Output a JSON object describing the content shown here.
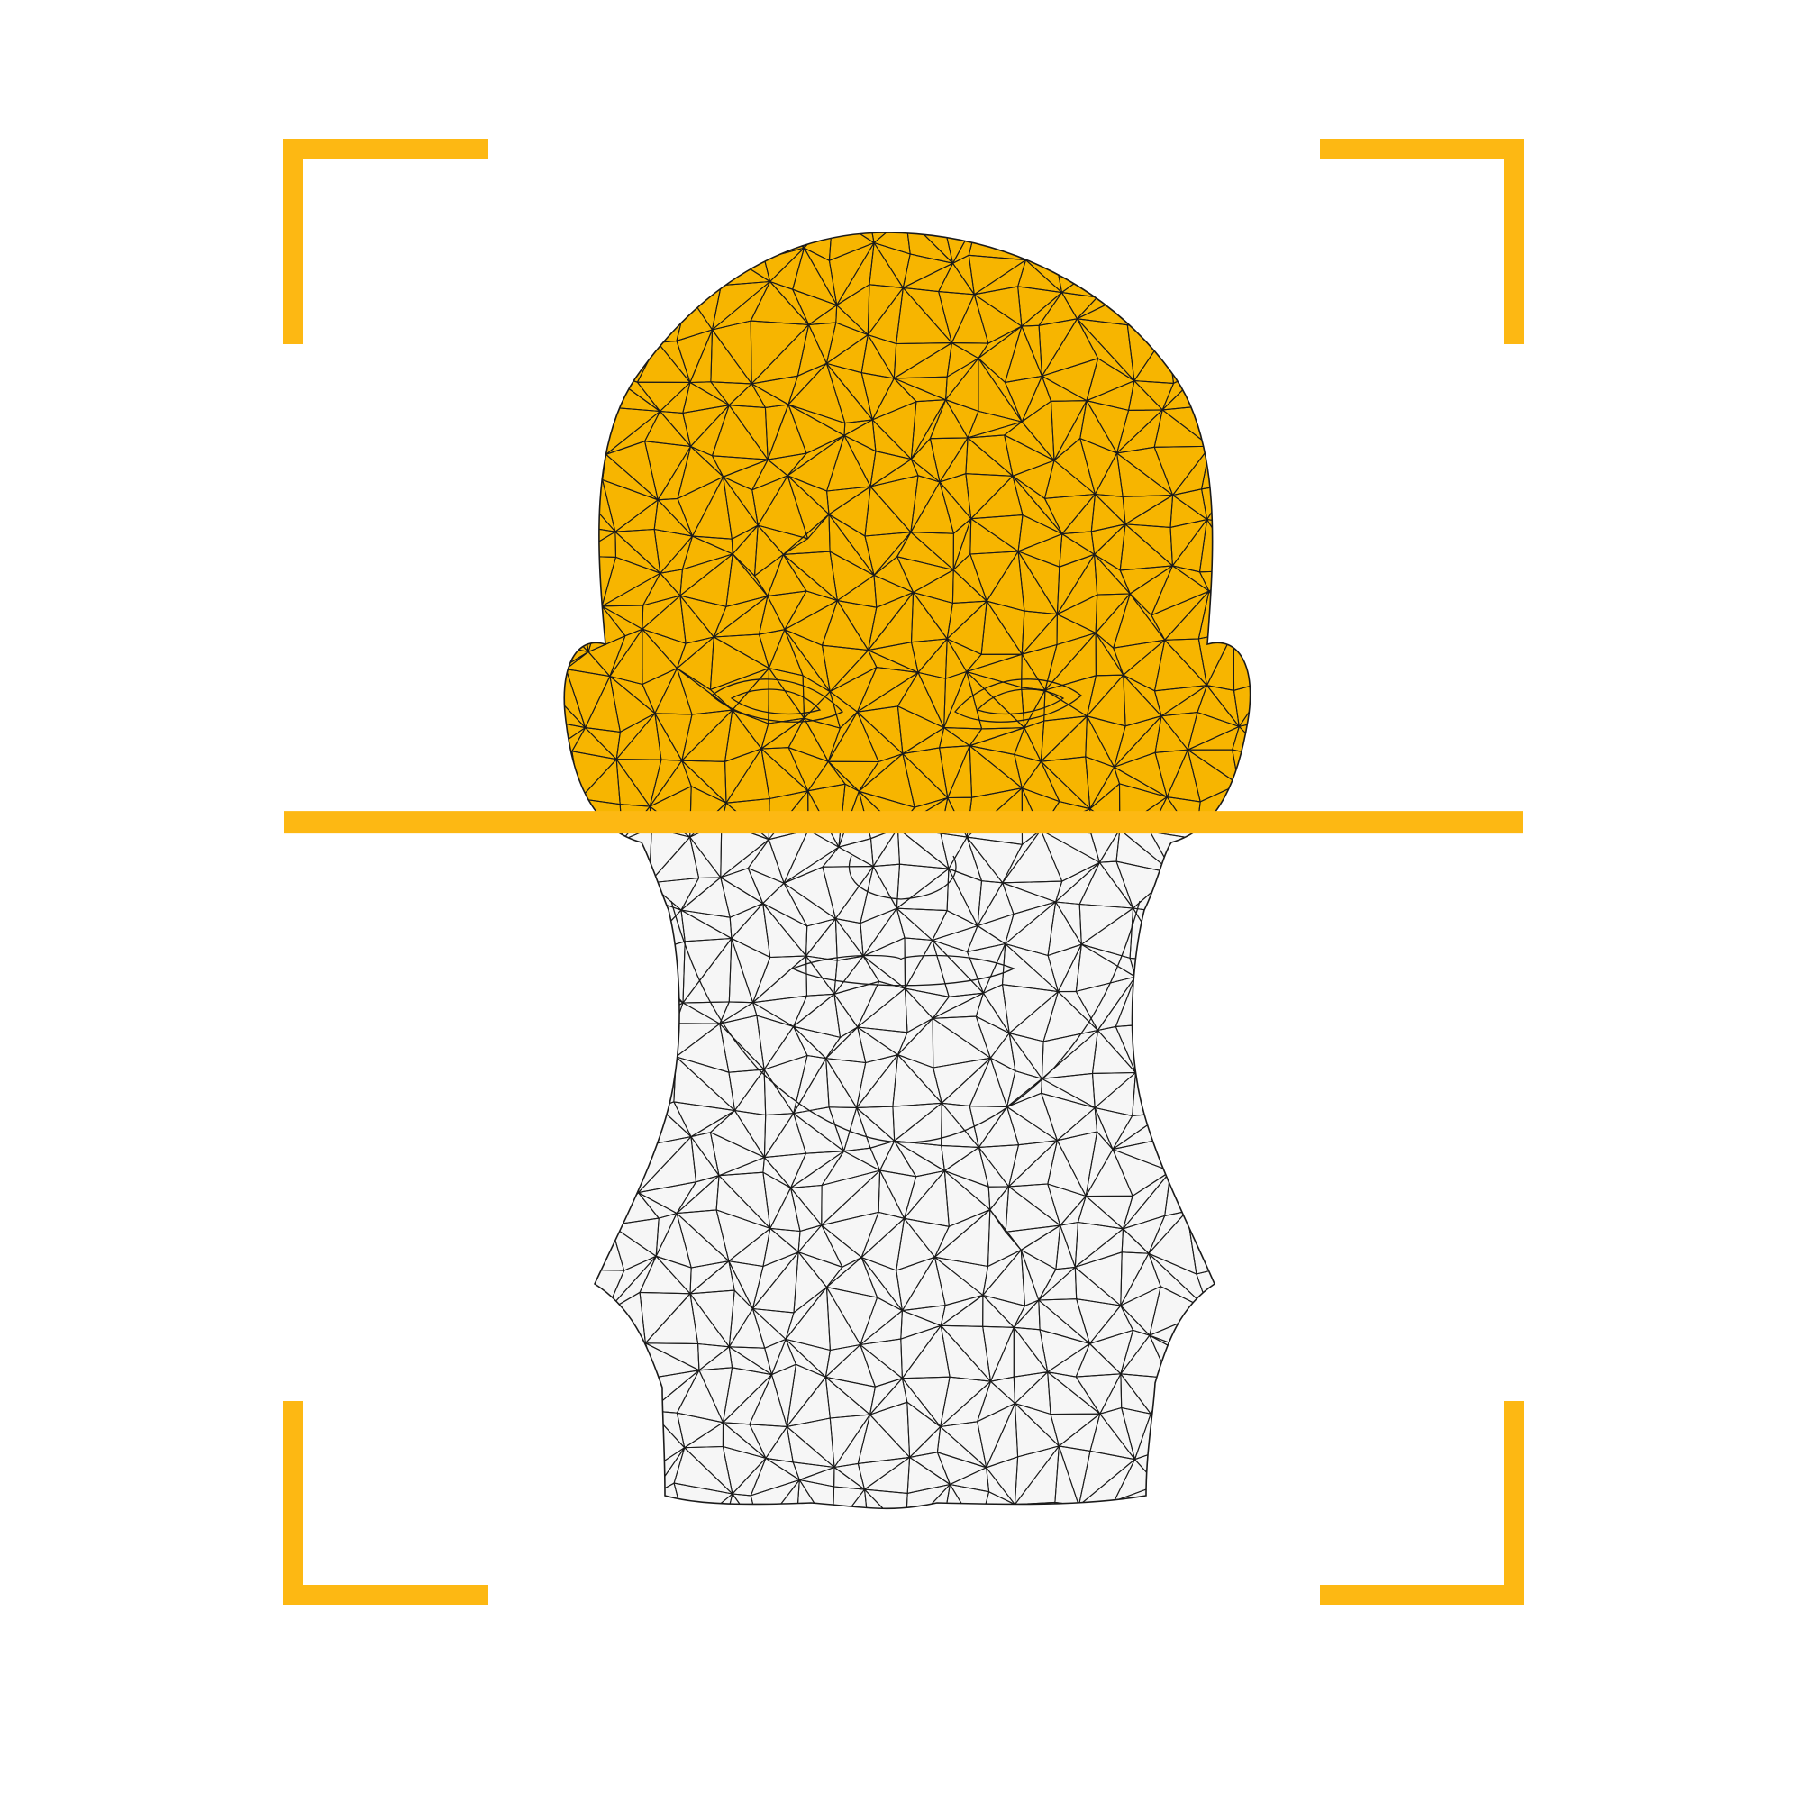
{
  "scanner": {
    "accent_color": "#FDB813",
    "scanned_fill": "#F7B500",
    "unscanned_fill": "#F6F6F6",
    "mesh_line_color": "#1A1A1A",
    "background_color": "#FFFFFF",
    "scan_progress_percent": 46,
    "icons": {
      "frame_corners": "viewfinder-corner-icon",
      "head": "wireframe-head-icon",
      "scan_line": "scan-line-icon"
    }
  }
}
